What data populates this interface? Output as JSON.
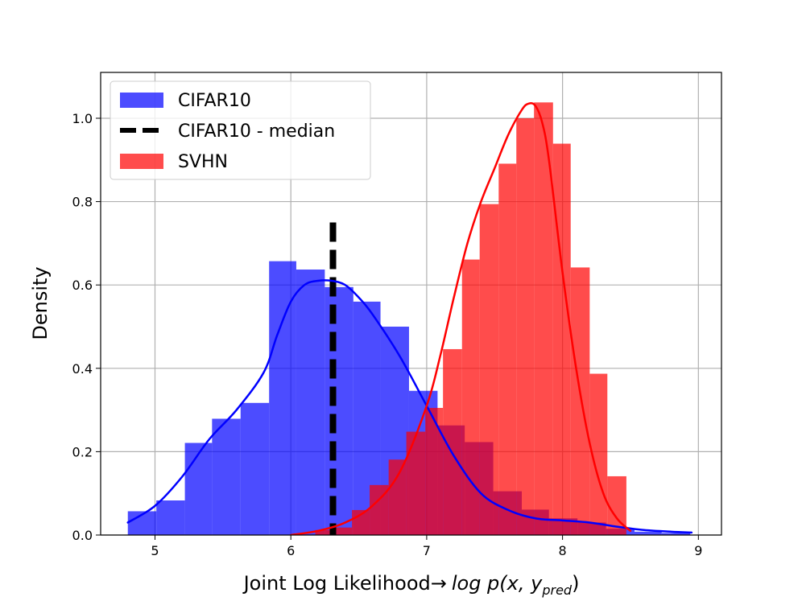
{
  "chart_data": {
    "type": "histogram",
    "xlabel": "Joint Log Likelihood→",
    "xlabel_math": {
      "prefix": "log p(x, y",
      "subscript": "pred",
      "suffix": ")"
    },
    "ylabel": "Density",
    "xlim": [
      4.6,
      9.17
    ],
    "ylim": [
      0.0,
      1.11
    ],
    "x_ticks": [
      5,
      6,
      7,
      8,
      9
    ],
    "y_ticks": [
      0.0,
      0.2,
      0.4,
      0.6,
      0.8,
      1.0
    ],
    "grid": true,
    "legend_position": "upper-left",
    "series": [
      {
        "name": "CIFAR10",
        "kind": "histogram",
        "color": "#0000ff",
        "opacity": 0.7,
        "bin_edges": [
          4.8,
          5.01,
          5.22,
          5.42,
          5.63,
          5.84,
          6.04,
          6.25,
          6.46,
          6.66,
          6.87,
          7.08,
          7.28,
          7.49,
          7.7,
          7.9,
          8.11,
          8.32,
          8.53,
          8.73,
          8.94
        ],
        "values": [
          0.057,
          0.083,
          0.221,
          0.279,
          0.317,
          0.657,
          0.637,
          0.595,
          0.56,
          0.5,
          0.346,
          0.263,
          0.223,
          0.105,
          0.061,
          0.04,
          0.03,
          0.015,
          0.008,
          0.005
        ]
      },
      {
        "name": "CIFAR10 - median",
        "kind": "vline",
        "color": "#000000",
        "x": 6.31,
        "y_range": [
          0.0,
          0.75
        ]
      },
      {
        "name": "SVHN",
        "kind": "histogram",
        "color": "#ff0000",
        "opacity": 0.7,
        "bin_edges": [
          6.18,
          6.31,
          6.45,
          6.58,
          6.72,
          6.85,
          6.99,
          7.12,
          7.26,
          7.39,
          7.53,
          7.66,
          7.79,
          7.93,
          8.06,
          8.2,
          8.33,
          8.47
        ],
        "values": [
          0.012,
          0.018,
          0.06,
          0.12,
          0.181,
          0.248,
          0.305,
          0.446,
          0.661,
          0.794,
          0.891,
          1.0,
          1.038,
          0.939,
          0.642,
          0.387,
          0.141,
          0.052
        ]
      }
    ],
    "kde": [
      {
        "series": "CIFAR10",
        "color": "#0000ff",
        "x": [
          4.8,
          5.0,
          5.2,
          5.4,
          5.6,
          5.8,
          5.9,
          6.0,
          6.1,
          6.2,
          6.3,
          6.4,
          6.5,
          6.6,
          6.8,
          7.0,
          7.2,
          7.4,
          7.6,
          7.8,
          8.0,
          8.2,
          8.4,
          8.6,
          8.8,
          8.95
        ],
        "y": [
          0.03,
          0.07,
          0.14,
          0.23,
          0.3,
          0.39,
          0.48,
          0.56,
          0.6,
          0.61,
          0.61,
          0.6,
          0.57,
          0.53,
          0.43,
          0.31,
          0.19,
          0.1,
          0.06,
          0.04,
          0.035,
          0.03,
          0.02,
          0.012,
          0.008,
          0.006
        ]
      },
      {
        "series": "SVHN",
        "color": "#ff0000",
        "x": [
          6.0,
          6.2,
          6.4,
          6.6,
          6.8,
          7.0,
          7.1,
          7.2,
          7.3,
          7.4,
          7.5,
          7.6,
          7.7,
          7.75,
          7.8,
          7.85,
          7.9,
          8.0,
          8.1,
          8.2,
          8.3,
          8.4,
          8.5
        ],
        "y": [
          0.0,
          0.01,
          0.03,
          0.07,
          0.15,
          0.31,
          0.43,
          0.57,
          0.7,
          0.8,
          0.88,
          0.96,
          1.02,
          1.035,
          1.03,
          0.99,
          0.9,
          0.63,
          0.4,
          0.22,
          0.1,
          0.04,
          0.01
        ]
      }
    ],
    "legend": [
      {
        "label": "CIFAR10",
        "swatch": "patch",
        "color": "#0000ff"
      },
      {
        "label": "CIFAR10 - median",
        "swatch": "dashed-line",
        "color": "#000000"
      },
      {
        "label": "SVHN",
        "swatch": "patch",
        "color": "#ff0000"
      }
    ]
  }
}
